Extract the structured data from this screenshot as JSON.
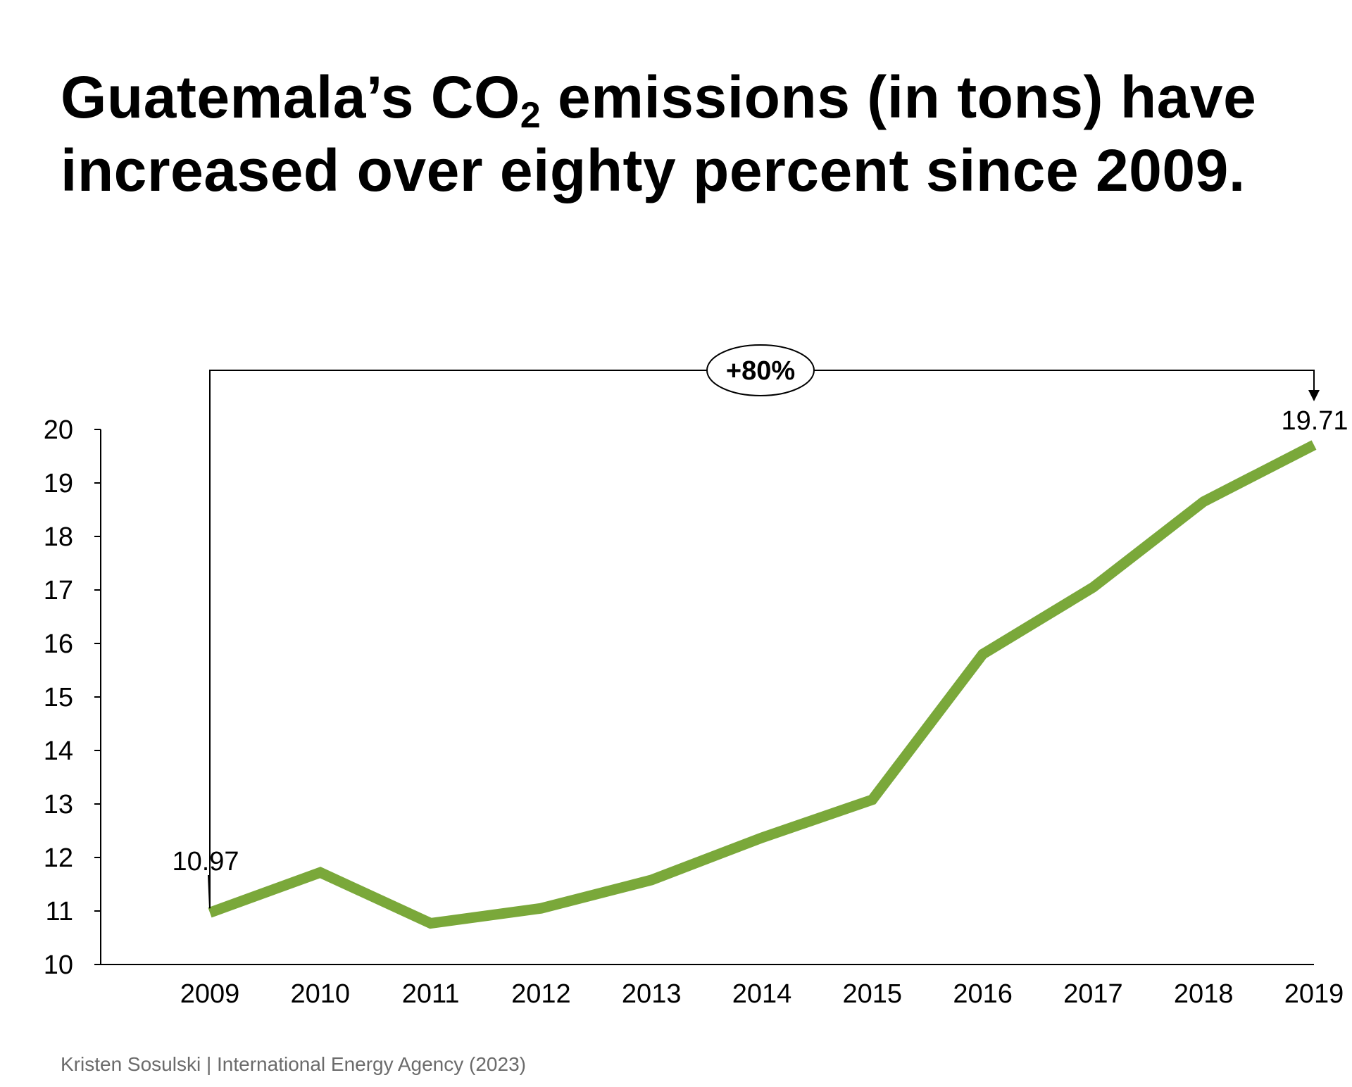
{
  "title": {
    "part1": "Guatemala’s CO",
    "subscript": "2",
    "part2": " emissions (in tons) have",
    "line2": "increased over eighty percent since 2009."
  },
  "source": "Kristen Sosulski | International Energy Agency (2023)",
  "chart_data": {
    "type": "line",
    "title": "Guatemala’s CO2 emissions (in tons) have increased over eighty percent since 2009.",
    "xlabel": "",
    "ylabel": "",
    "categories": [
      "2009",
      "2010",
      "2011",
      "2012",
      "2013",
      "2014",
      "2015",
      "2016",
      "2017",
      "2018",
      "2019"
    ],
    "series": [
      {
        "name": "CO2 emissions",
        "color": "#7aa83a",
        "values": [
          10.97,
          11.72,
          10.77,
          11.05,
          11.58,
          12.37,
          13.08,
          15.8,
          17.05,
          18.65,
          19.71
        ]
      }
    ],
    "ylim": [
      10,
      20
    ],
    "yticks": [
      10,
      11,
      12,
      13,
      14,
      15,
      16,
      17,
      18,
      19,
      20
    ],
    "grid": false,
    "annotations": {
      "start_label": "10.97",
      "end_label": "19.71",
      "change_label": "+80%"
    }
  }
}
